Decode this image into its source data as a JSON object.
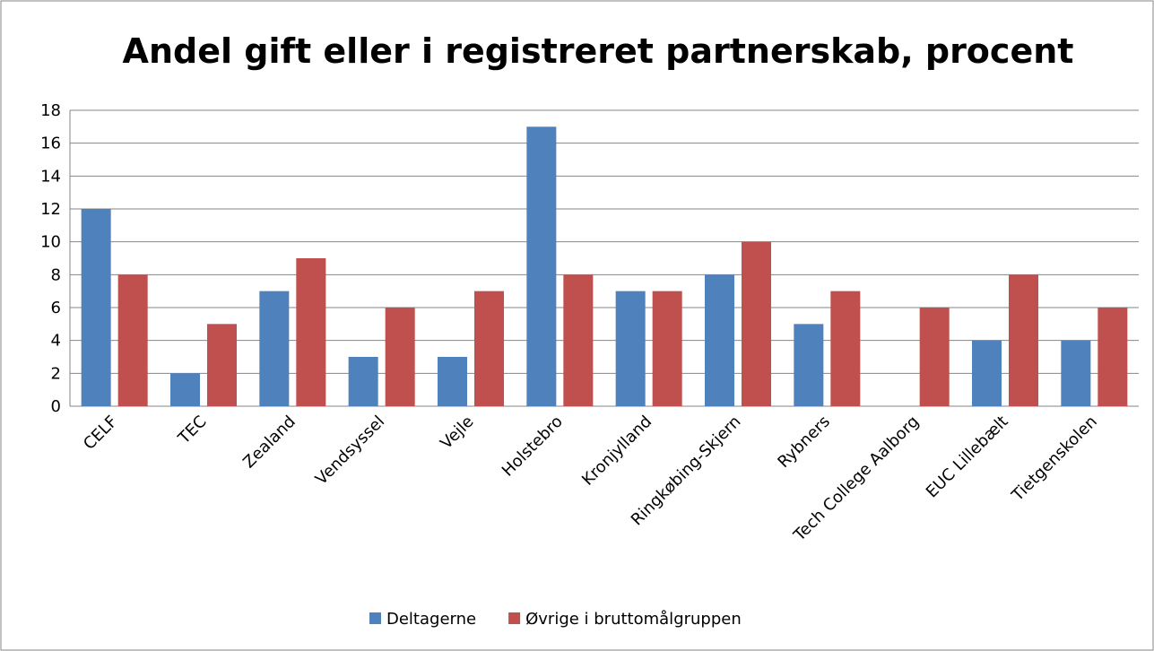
{
  "chart_data": {
    "type": "bar",
    "title": "Andel gift eller i registreret partnerskab, procent",
    "categories": [
      "CELF",
      "TEC",
      "Zealand",
      "Vendsyssel",
      "Vejle",
      "Holstebro",
      "Kronjylland",
      "Ringkøbing-Skjern",
      "Rybners",
      "Tech College Aalborg",
      "EUC Lillebælt",
      "Tietgenskolen"
    ],
    "series": [
      {
        "name": "Deltagerne",
        "color": "#4f81bd",
        "values": [
          12,
          2,
          7,
          3,
          3,
          17,
          7,
          8,
          5,
          0,
          4,
          4
        ]
      },
      {
        "name": "Øvrige i bruttomålgruppen",
        "color": "#c0504d",
        "values": [
          8,
          5,
          9,
          6,
          7,
          8,
          7,
          10,
          7,
          6,
          8,
          6
        ]
      }
    ],
    "ylim": [
      0,
      18
    ],
    "yticks": [
      0,
      2,
      4,
      6,
      8,
      10,
      12,
      14,
      16,
      18
    ],
    "grid": true,
    "legend": "bottom"
  }
}
